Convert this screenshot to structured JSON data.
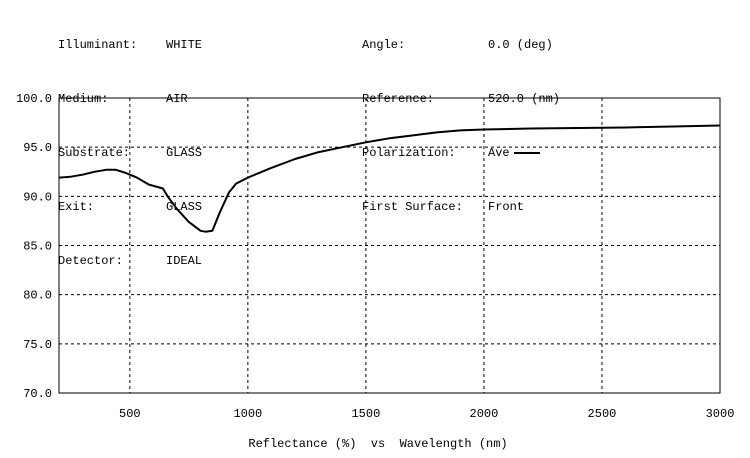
{
  "header": {
    "left": [
      {
        "label": "Illuminant:",
        "value": "WHITE"
      },
      {
        "label": "Medium:",
        "value": "AIR"
      },
      {
        "label": "Substrate:",
        "value": "GLASS"
      },
      {
        "label": "Exit:",
        "value": "GLASS"
      },
      {
        "label": "Detector:",
        "value": "IDEAL"
      }
    ],
    "right": [
      {
        "label": "Angle:",
        "value": "0.0 (deg)"
      },
      {
        "label": "Reference:",
        "value": "520.0 (nm)"
      },
      {
        "label": "Polarization:",
        "value": "Ave"
      },
      {
        "label": "First Surface:",
        "value": "Front"
      }
    ]
  },
  "chart_data": {
    "type": "line",
    "title": "",
    "xlabel": "Reflectance (%)  vs  Wavelength (nm)",
    "ylabel": "",
    "xlim": [
      200,
      3000
    ],
    "ylim": [
      70,
      100
    ],
    "xticks": [
      500,
      1000,
      1500,
      2000,
      2500,
      3000
    ],
    "yticks": [
      100,
      95,
      90,
      85,
      80,
      75,
      70
    ],
    "ytick_labels": [
      "100.0",
      "95.0",
      "90.0",
      "85.0",
      "80.0",
      "75.0",
      "70.0"
    ],
    "grid": true,
    "legend": "top-right",
    "series": [
      {
        "name": "Ave",
        "color": "#000000",
        "x": [
          200,
          250,
          300,
          350,
          400,
          440,
          480,
          530,
          580,
          640,
          660,
          700,
          750,
          800,
          820,
          850,
          880,
          920,
          950,
          1000,
          1100,
          1200,
          1300,
          1400,
          1500,
          1600,
          1700,
          1800,
          1900,
          2000,
          2200,
          2400,
          2600,
          2800,
          3000
        ],
        "y": [
          91.9,
          92.0,
          92.2,
          92.5,
          92.7,
          92.7,
          92.4,
          91.9,
          91.2,
          90.8,
          90.0,
          88.7,
          87.4,
          86.5,
          86.4,
          86.5,
          88.3,
          90.4,
          91.3,
          91.9,
          92.9,
          93.8,
          94.5,
          95.0,
          95.5,
          95.9,
          96.2,
          96.5,
          96.7,
          96.8,
          96.9,
          96.95,
          97.0,
          97.1,
          97.2
        ]
      }
    ]
  }
}
